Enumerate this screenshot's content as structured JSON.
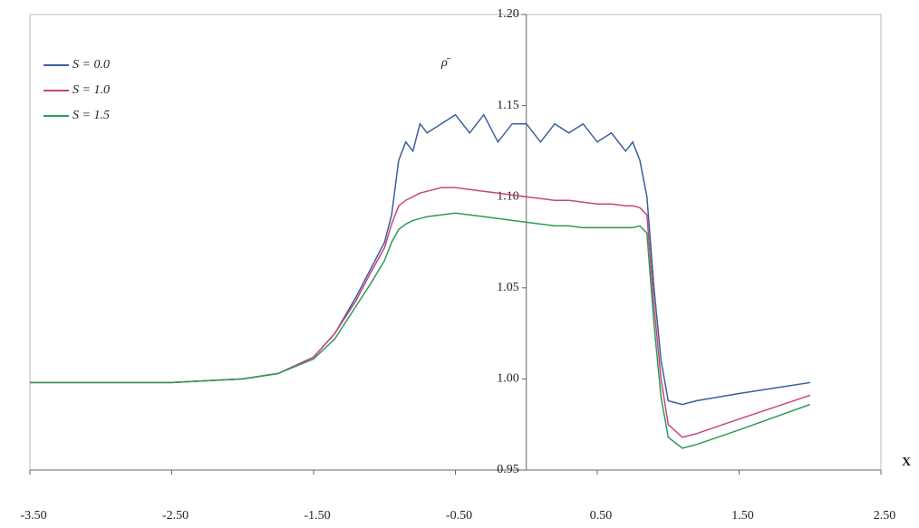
{
  "chart_data": {
    "type": "line",
    "y_label": "ρ̄",
    "x_label": "X",
    "x": [
      -3.5,
      -3,
      -2.5,
      -2,
      -1.75,
      -1.5,
      -1.35,
      -1.2,
      -1.1,
      -1.0,
      -0.95,
      -0.9,
      -0.85,
      -0.8,
      -0.75,
      -0.7,
      -0.6,
      -0.5,
      -0.4,
      -0.3,
      -0.2,
      -0.1,
      0,
      0.1,
      0.2,
      0.3,
      0.4,
      0.5,
      0.6,
      0.7,
      0.75,
      0.8,
      0.85,
      0.9,
      0.95,
      1.0,
      1.1,
      1.2,
      1.5,
      2.0
    ],
    "series": [
      {
        "name": "S = 0.0",
        "color": "#3a5f9f",
        "values": [
          0.998,
          0.998,
          0.998,
          1.0,
          1.003,
          1.012,
          1.025,
          1.045,
          1.06,
          1.075,
          1.09,
          1.12,
          1.13,
          1.125,
          1.14,
          1.135,
          1.14,
          1.145,
          1.135,
          1.145,
          1.13,
          1.14,
          1.14,
          1.13,
          1.14,
          1.135,
          1.14,
          1.13,
          1.135,
          1.125,
          1.13,
          1.12,
          1.1,
          1.05,
          1.01,
          0.988,
          0.986,
          0.988,
          0.992,
          0.998
        ]
      },
      {
        "name": "S = 1.0",
        "color": "#c8457e",
        "values": [
          0.998,
          0.998,
          0.998,
          1.0,
          1.003,
          1.012,
          1.025,
          1.043,
          1.058,
          1.072,
          1.085,
          1.095,
          1.098,
          1.1,
          1.102,
          1.103,
          1.105,
          1.105,
          1.104,
          1.103,
          1.102,
          1.101,
          1.1,
          1.099,
          1.098,
          1.098,
          1.097,
          1.096,
          1.096,
          1.095,
          1.095,
          1.094,
          1.09,
          1.04,
          1.0,
          0.975,
          0.968,
          0.97,
          0.978,
          0.991
        ]
      },
      {
        "name": "S = 1.5",
        "color": "#2e9a55",
        "values": [
          0.998,
          0.998,
          0.998,
          1.0,
          1.003,
          1.011,
          1.022,
          1.04,
          1.052,
          1.065,
          1.075,
          1.082,
          1.085,
          1.087,
          1.088,
          1.089,
          1.09,
          1.091,
          1.09,
          1.089,
          1.088,
          1.087,
          1.086,
          1.085,
          1.084,
          1.084,
          1.083,
          1.083,
          1.083,
          1.083,
          1.083,
          1.084,
          1.08,
          1.03,
          0.99,
          0.968,
          0.962,
          0.964,
          0.972,
          0.986
        ]
      }
    ],
    "xlim": [
      -3.5,
      2.5
    ],
    "xticks": [
      {
        "value": -3.5,
        "label": "-3.50"
      },
      {
        "value": -2.5,
        "label": "-2.50"
      },
      {
        "value": -1.5,
        "label": "-1.50"
      },
      {
        "value": -0.5,
        "label": "-0.50"
      },
      {
        "value": 0.5,
        "label": "0.50"
      },
      {
        "value": 1.5,
        "label": "1.50"
      },
      {
        "value": 2.5,
        "label": "2.50"
      }
    ],
    "ylim": [
      0.95,
      1.2
    ],
    "yticks": [
      {
        "value": 0.95,
        "label": "0.95"
      },
      {
        "value": 1.0,
        "label": "1.00"
      },
      {
        "value": 1.05,
        "label": "1.05"
      },
      {
        "value": 1.1,
        "label": "1.10"
      },
      {
        "value": 1.15,
        "label": "1.15"
      },
      {
        "value": 1.2,
        "label": "1.20"
      }
    ]
  }
}
